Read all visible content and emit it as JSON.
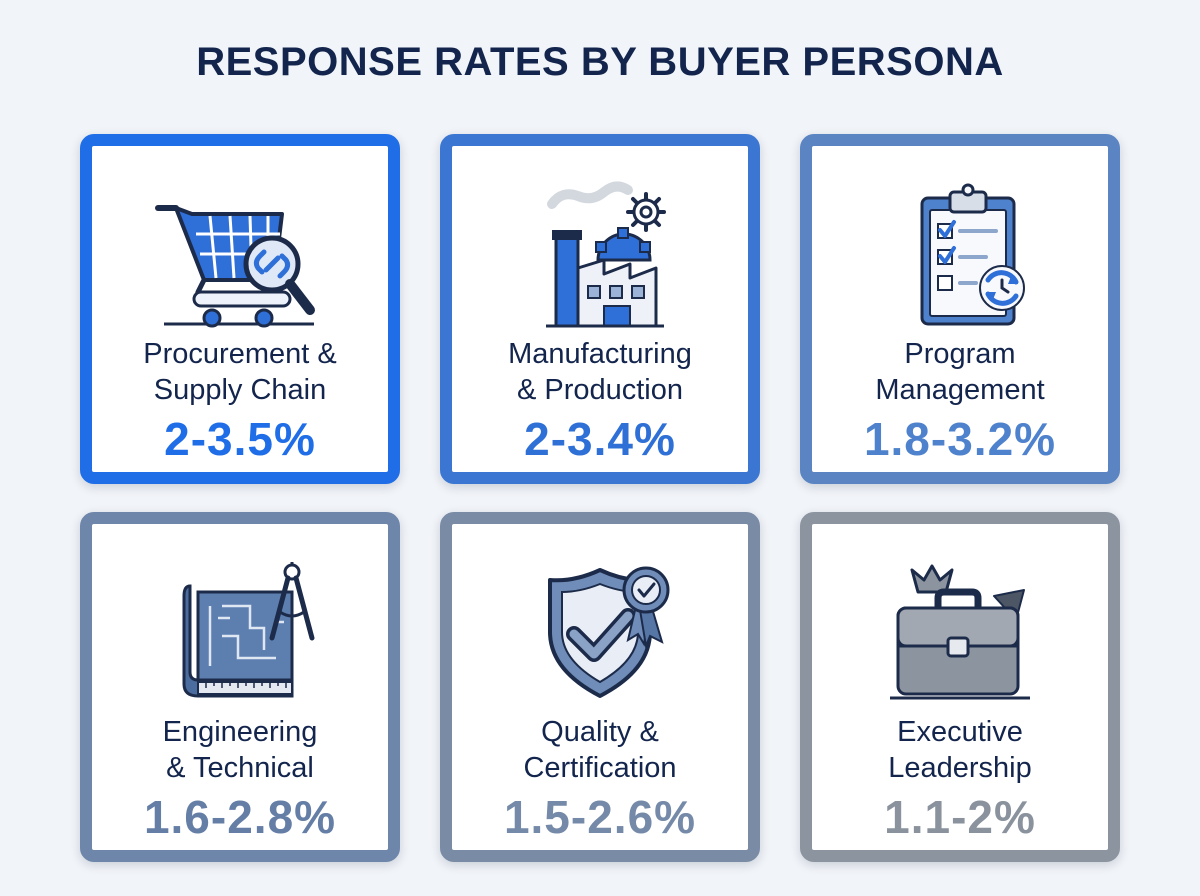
{
  "title": "RESPONSE RATES BY BUYER PERSONA",
  "personas": [
    {
      "name": "Procurement &\nSupply Chain",
      "rate": "2-3.5%",
      "icon": "shopping-cart-icon",
      "border_color": "#1f6ee8",
      "rate_color": "#1f6ee8"
    },
    {
      "name": "Manufacturing\n& Production",
      "rate": "2-3.4%",
      "icon": "factory-icon",
      "border_color": "#3b77d2",
      "rate_color": "#2f70d6"
    },
    {
      "name": "Program\nManagement",
      "rate": "1.8-3.2%",
      "icon": "clipboard-checklist-icon",
      "border_color": "#5a85c2",
      "rate_color": "#4f82cc"
    },
    {
      "name": "Engineering\n& Technical",
      "rate": "1.6-2.8%",
      "icon": "blueprint-compass-icon",
      "border_color": "#6d86aa",
      "rate_color": "#647ea6"
    },
    {
      "name": "Quality &\nCertification",
      "rate": "1.5-2.6%",
      "icon": "shield-badge-icon",
      "border_color": "#7a8ba6",
      "rate_color": "#748aa8"
    },
    {
      "name": "Executive\nLeadership",
      "rate": "1.1-2%",
      "icon": "briefcase-crown-icon",
      "border_color": "#8c949f",
      "rate_color": "#8a929d"
    }
  ]
}
